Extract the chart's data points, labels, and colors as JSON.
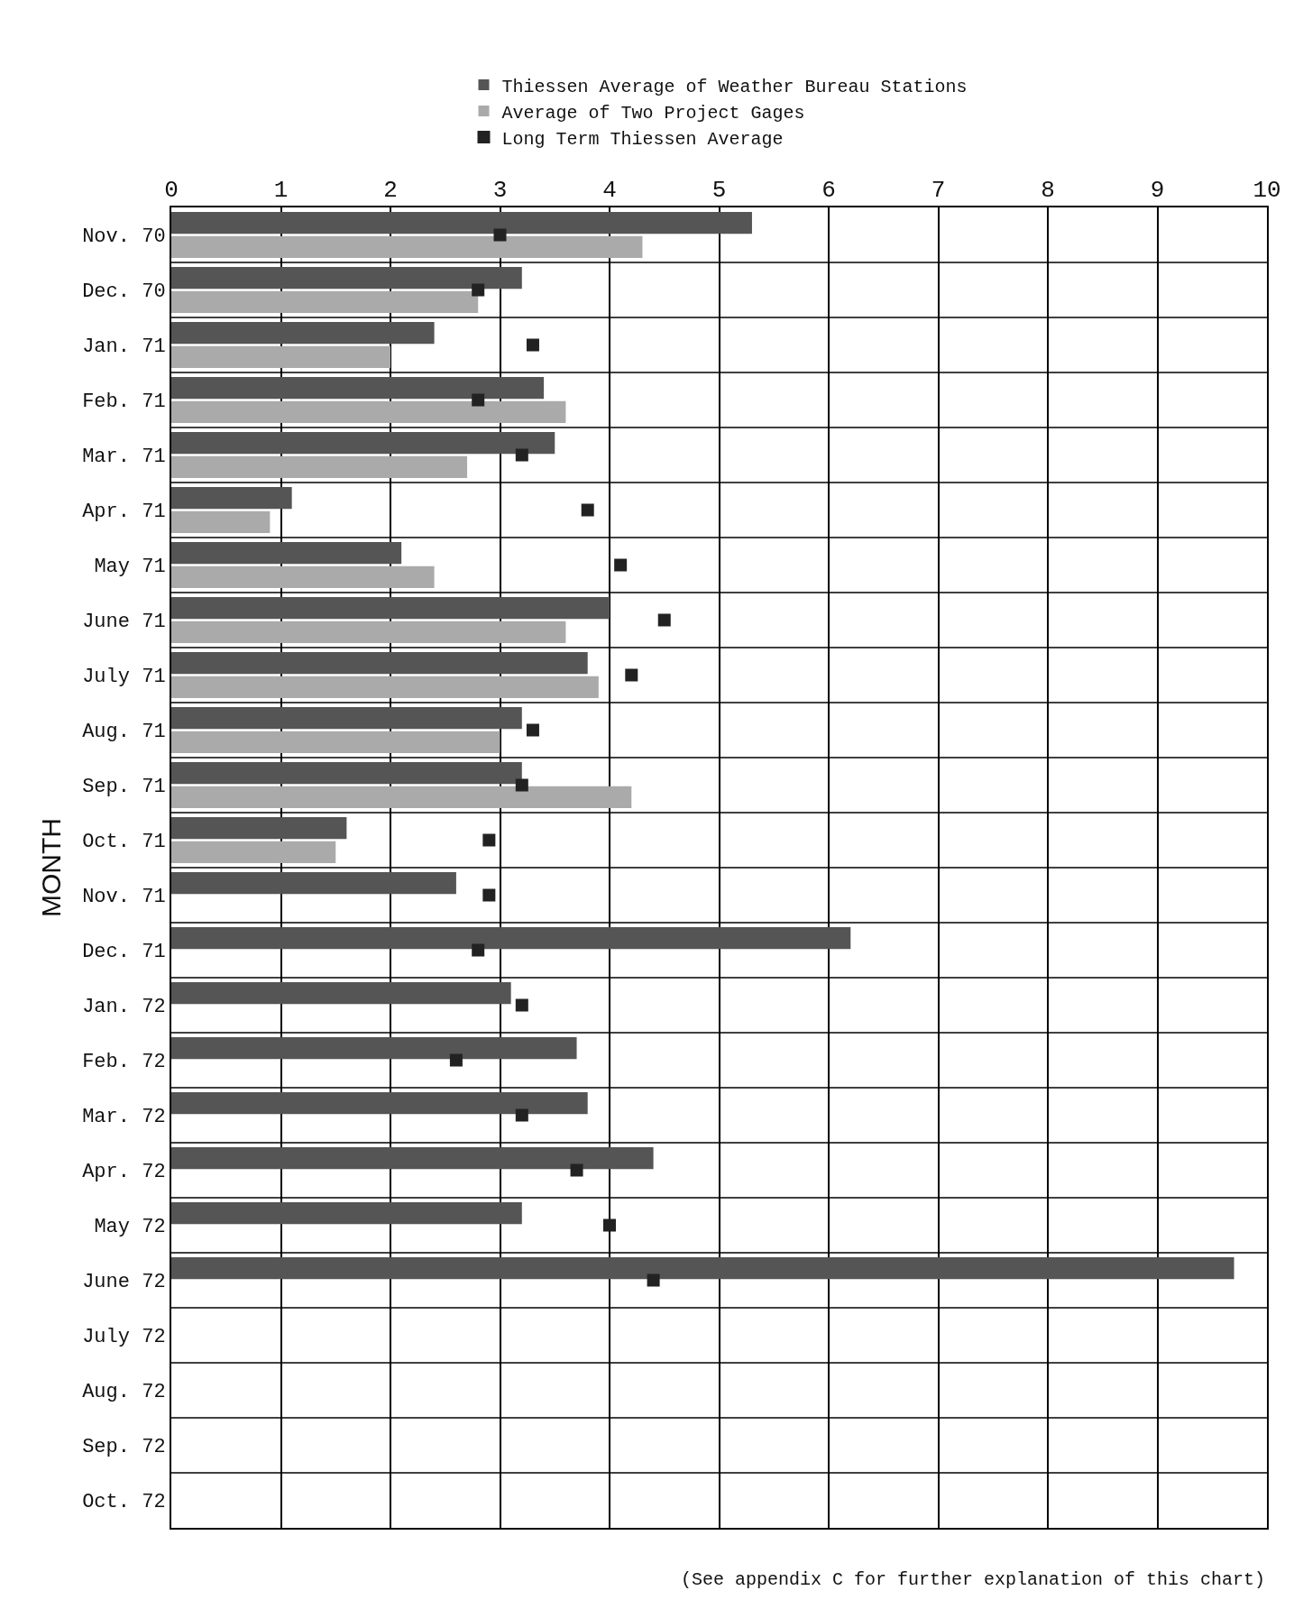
{
  "chart_data": {
    "type": "bar",
    "orientation": "horizontal",
    "ylabel": "MONTH",
    "categories": [
      "Nov. 70",
      "Dec. 70",
      "Jan. 71",
      "Feb. 71",
      "Mar. 71",
      "Apr. 71",
      "May 71",
      "June 71",
      "July 71",
      "Aug. 71",
      "Sep. 71",
      "Oct. 71",
      "Nov. 71",
      "Dec. 71",
      "Jan. 72",
      "Feb. 72",
      "Mar. 72",
      "Apr. 72",
      "May 72",
      "June 72",
      "July 72",
      "Aug. 72",
      "Sep. 72",
      "Oct. 72"
    ],
    "series": [
      {
        "name": "Thiessen Average of Weather Bureau Stations",
        "color": "#555555",
        "values": [
          5.3,
          3.2,
          2.4,
          3.4,
          3.5,
          1.1,
          2.1,
          4.0,
          3.8,
          3.2,
          3.2,
          1.6,
          2.6,
          6.2,
          3.1,
          3.7,
          3.8,
          4.4,
          3.2,
          9.7,
          null,
          null,
          null,
          null
        ]
      },
      {
        "name": "Average of Two Project Gages",
        "color": "#aaaaaa",
        "values": [
          4.3,
          2.8,
          2.0,
          3.6,
          2.7,
          0.9,
          2.4,
          3.6,
          3.9,
          3.0,
          4.2,
          1.5,
          null,
          null,
          null,
          null,
          null,
          null,
          null,
          null,
          null,
          null,
          null,
          null
        ]
      },
      {
        "name": "Long Term Thiessen Average",
        "type": "scatter",
        "marker": "square",
        "color": "#222222",
        "values": [
          3.0,
          2.8,
          3.3,
          2.8,
          3.2,
          3.8,
          4.1,
          4.5,
          4.2,
          3.3,
          3.2,
          2.9,
          2.9,
          2.8,
          3.2,
          2.6,
          3.2,
          3.7,
          4.0,
          4.4,
          null,
          null,
          null,
          null
        ]
      }
    ],
    "xlim": [
      0,
      10
    ],
    "xticks": [
      0,
      1,
      2,
      3,
      4,
      5,
      6,
      7,
      8,
      9,
      10
    ],
    "grid": true,
    "legend": "top",
    "annotations": [
      "(See appendix C for further explanation of this chart)"
    ]
  }
}
